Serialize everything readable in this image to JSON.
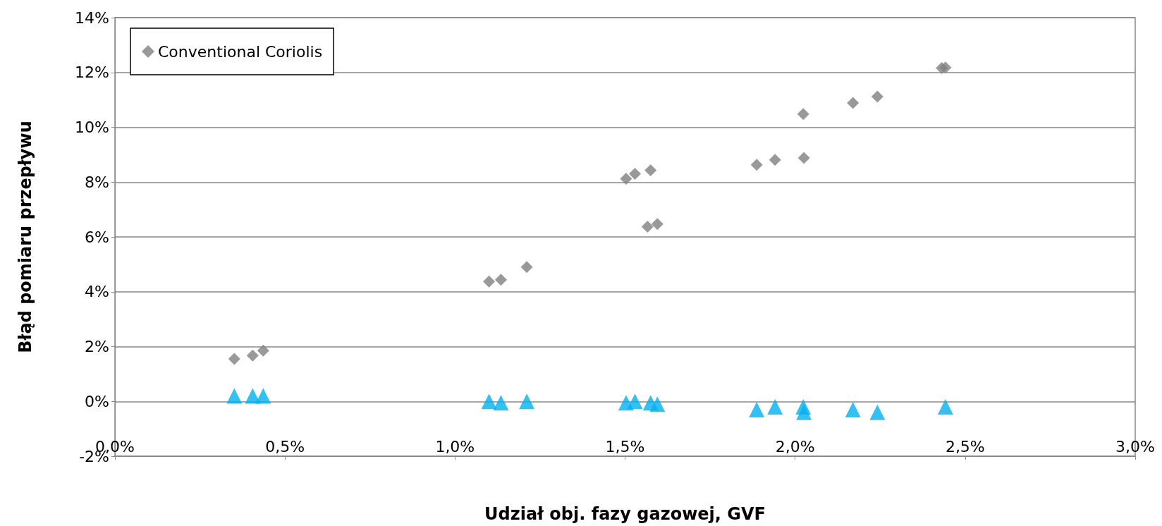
{
  "chart_data": {
    "type": "scatter",
    "xlabel": "Udział obj. fazy gazowej, GVF",
    "ylabel": "Błąd pomiaru przepływu",
    "xlim": [
      0,
      3
    ],
    "xticks": [
      {
        "value": 0,
        "label": "0,0%"
      },
      {
        "value": 0.5,
        "label": "0,5%"
      },
      {
        "value": 1,
        "label": "1,0%"
      },
      {
        "value": 1.5,
        "label": "1,5%"
      },
      {
        "value": 2,
        "label": "2,0%"
      },
      {
        "value": 2.5,
        "label": "2,5%"
      },
      {
        "value": 3,
        "label": "3,0%"
      }
    ],
    "ylim": [
      -2,
      14
    ],
    "yticks": [
      {
        "value": -2,
        "label": "-2%"
      },
      {
        "value": 0,
        "label": "0%"
      },
      {
        "value": 2,
        "label": "2%"
      },
      {
        "value": 4,
        "label": "4%"
      },
      {
        "value": 6,
        "label": "6%"
      },
      {
        "value": 8,
        "label": "8%"
      },
      {
        "value": 10,
        "label": "10%"
      },
      {
        "value": 12,
        "label": "12%"
      },
      {
        "value": 14,
        "label": "14%"
      }
    ],
    "grid": "y",
    "legend": "top left",
    "series": [
      {
        "name": "Conventional Coriolis",
        "color": "#808080",
        "marker": "diamond",
        "x": [
          0.351,
          0.405,
          0.436,
          1.1,
          1.135,
          1.211,
          1.503,
          1.529,
          1.575,
          1.566,
          1.595,
          1.887,
          1.941,
          2.026,
          2.024,
          2.17,
          2.242,
          2.431,
          2.442
        ],
        "values": [
          1.55,
          1.67,
          1.85,
          4.37,
          4.44,
          4.9,
          8.12,
          8.3,
          8.43,
          6.37,
          6.47,
          8.63,
          8.81,
          8.88,
          10.48,
          10.89,
          11.12,
          12.16,
          12.18
        ]
      },
      {
        "color": "#00b0f0",
        "marker": "triangle",
        "x": [
          0.351,
          0.405,
          0.436,
          1.1,
          1.135,
          1.211,
          1.503,
          1.529,
          1.566,
          1.575,
          1.595,
          1.887,
          1.941,
          2.024,
          2.026,
          2.17,
          2.242,
          2.431,
          2.442
        ],
        "values": [
          0.2,
          0.2,
          0.2,
          0,
          -0.05,
          0,
          -0.05,
          0,
          null,
          -0.05,
          -0.1,
          -0.3,
          -0.2,
          -0.2,
          -0.4,
          -0.3,
          -0.4,
          null,
          -0.2
        ]
      }
    ]
  }
}
